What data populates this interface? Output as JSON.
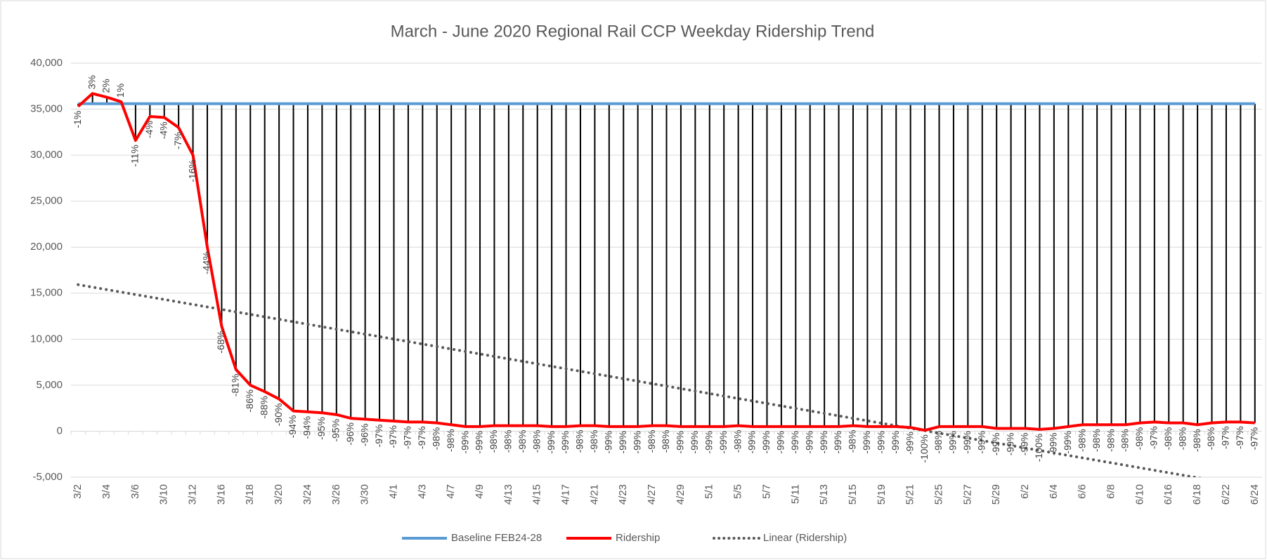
{
  "chart_data": {
    "type": "line",
    "title": "March - June 2020 Regional Rail CCP Weekday Ridership Trend",
    "categories": [
      "3/2",
      null,
      "3/4",
      null,
      "3/6",
      null,
      "3/10",
      null,
      "3/12",
      null,
      "3/16",
      null,
      "3/18",
      null,
      "3/20",
      null,
      "3/24",
      null,
      "3/26",
      null,
      "3/30",
      null,
      "4/1",
      null,
      "4/3",
      null,
      "4/7",
      null,
      "4/9",
      null,
      "4/13",
      null,
      "4/15",
      null,
      "4/17",
      null,
      "4/21",
      null,
      "4/23",
      null,
      "4/27",
      null,
      "4/29",
      null,
      "5/1",
      null,
      "5/5",
      null,
      "5/7",
      null,
      "5/11",
      null,
      "5/13",
      null,
      "5/15",
      null,
      "5/19",
      null,
      "5/21",
      null,
      "5/25",
      null,
      "5/27",
      null,
      "5/29",
      null,
      "6/2",
      null,
      "6/4",
      null,
      "6/6",
      null,
      "6/8",
      null,
      "6/10",
      null,
      "6/16",
      null,
      "6/18",
      null,
      "6/22",
      null,
      "6/24"
    ],
    "series": [
      {
        "name": "Baseline FEB24-28",
        "color": "#5b9bd5",
        "values": [
          35600,
          35600,
          35600,
          35600,
          35600,
          35600,
          35600,
          35600,
          35600,
          35600,
          35600,
          35600,
          35600,
          35600,
          35600,
          35600,
          35600,
          35600,
          35600,
          35600,
          35600,
          35600,
          35600,
          35600,
          35600,
          35600,
          35600,
          35600,
          35600,
          35600,
          35600,
          35600,
          35600,
          35600,
          35600,
          35600,
          35600,
          35600,
          35600,
          35600,
          35600,
          35600,
          35600,
          35600,
          35600,
          35600,
          35600,
          35600,
          35600,
          35600,
          35600,
          35600,
          35600,
          35600,
          35600,
          35600,
          35600,
          35600,
          35600,
          35600,
          35600,
          35600,
          35600,
          35600,
          35600,
          35600,
          35600,
          35600,
          35600,
          35600,
          35600,
          35600,
          35600,
          35600,
          35600,
          35600,
          35600,
          35600,
          35600,
          35600,
          35600,
          35600,
          35600
        ]
      },
      {
        "name": "Ridership",
        "color": "#ff0000",
        "values": [
          35300,
          36700,
          36300,
          35800,
          31600,
          34200,
          34100,
          33000,
          30000,
          20000,
          11400,
          6700,
          5000,
          4300,
          3500,
          2200,
          2100,
          2000,
          1800,
          1400,
          1300,
          1200,
          1100,
          1000,
          1000,
          900,
          700,
          500,
          500,
          600,
          600,
          600,
          600,
          500,
          500,
          600,
          600,
          500,
          500,
          500,
          600,
          600,
          500,
          500,
          500,
          500,
          600,
          500,
          500,
          500,
          500,
          500,
          500,
          500,
          600,
          500,
          500,
          500,
          400,
          100,
          500,
          500,
          500,
          500,
          300,
          300,
          300,
          200,
          300,
          500,
          700,
          700,
          700,
          700,
          900,
          1000,
          900,
          900,
          700,
          900,
          1000,
          1000,
          900
        ],
        "point_labels": [
          "-1%",
          "3%",
          "2%",
          "1%",
          "-11%",
          "-4%",
          "-4%",
          "-7%",
          "-16%",
          "-44%",
          "-68%",
          "-81%",
          "-86%",
          "-88%",
          "-90%",
          "-94%",
          "-94%",
          "-95%",
          "-95%",
          "-96%",
          "-96%",
          "-97%",
          "-97%",
          "-97%",
          "-97%",
          "-98%",
          "-98%",
          "-99%",
          "-99%",
          "-98%",
          "-98%",
          "-98%",
          "-98%",
          "-99%",
          "-99%",
          "-98%",
          "-98%",
          "-99%",
          "-99%",
          "-99%",
          "-98%",
          "-98%",
          "-99%",
          "-99%",
          "-99%",
          "-99%",
          "-98%",
          "-99%",
          "-99%",
          "-99%",
          "-99%",
          "-99%",
          "-99%",
          "-99%",
          "-98%",
          "-99%",
          "-99%",
          "-99%",
          "-99%",
          "-100%",
          "-98%",
          "-99%",
          "-99%",
          "-99%",
          "-99%",
          "-99%",
          "-99%",
          "-100%",
          "-99%",
          "-99%",
          "-98%",
          "-98%",
          "-98%",
          "-98%",
          "-98%",
          "-97%",
          "-98%",
          "-98%",
          "-98%",
          "-98%",
          "-97%",
          "-97%",
          "-97%"
        ]
      }
    ],
    "drop_lines": true,
    "drop_line_color": "#000000",
    "trendline": {
      "type": "linear",
      "name": "Linear (Ridership)",
      "color": "#595959"
    },
    "ylim": [
      -5000,
      40000
    ],
    "yticks": [
      {
        "value": -5000,
        "label": "-5,000"
      },
      0,
      {
        "value": 5000,
        "label": "5,000"
      },
      {
        "value": 10000,
        "label": "10,000"
      },
      {
        "value": 15000,
        "label": "15,000"
      },
      {
        "value": 20000,
        "label": "20,000"
      },
      {
        "value": 25000,
        "label": "25,000"
      },
      {
        "value": 30000,
        "label": "30,000"
      },
      {
        "value": 35000,
        "label": "35,000"
      },
      {
        "value": 40000,
        "label": "40,000"
      }
    ],
    "grid": true,
    "legend": "bottom"
  }
}
